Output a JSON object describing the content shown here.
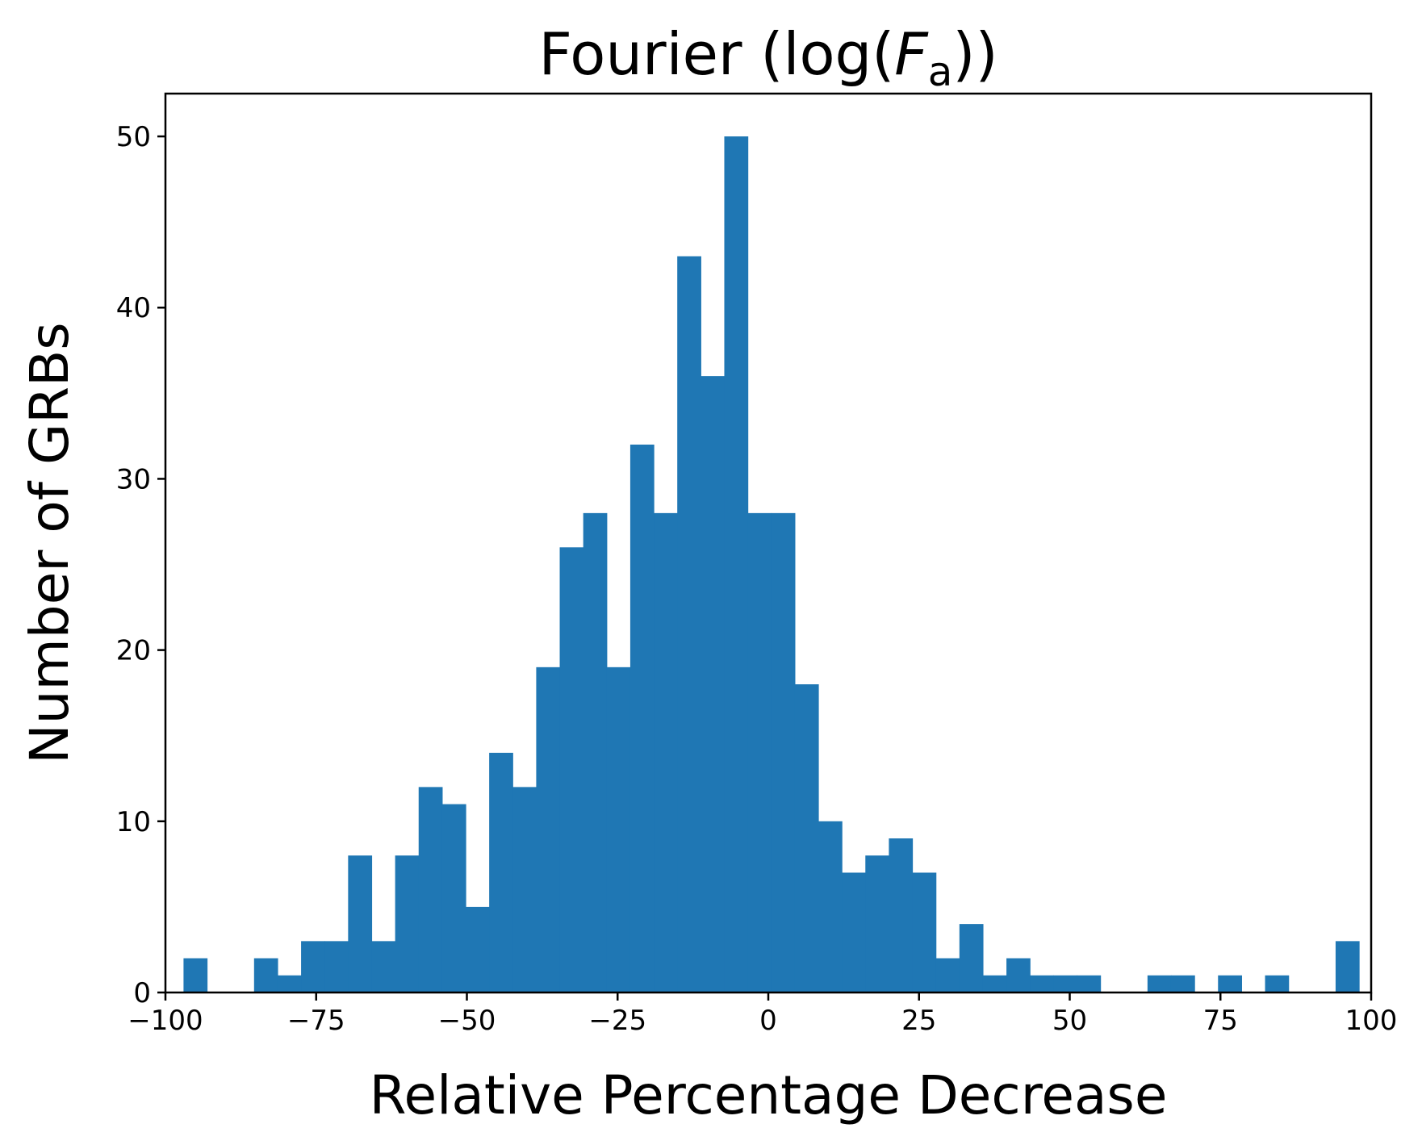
{
  "chart_data": {
    "type": "bar",
    "title": {
      "prefix": "Fourier (log(",
      "variable": "F",
      "subscript": "a",
      "suffix": "))"
    },
    "xlabel": "Relative Percentage Decrease",
    "ylabel": "Number of GRBs",
    "xlim": [
      -100,
      100
    ],
    "ylim": [
      0,
      52.5
    ],
    "xticks": [
      -100,
      -75,
      -50,
      -25,
      0,
      25,
      50,
      75,
      100
    ],
    "xtick_labels": [
      "−100",
      "−75",
      "−50",
      "−25",
      "0",
      "25",
      "50",
      "75",
      "100"
    ],
    "yticks": [
      0,
      10,
      20,
      30,
      40,
      50
    ],
    "ytick_labels": [
      "0",
      "10",
      "20",
      "30",
      "40",
      "50"
    ],
    "grid": false,
    "bar_color": "#1f77b4",
    "bin_edges": [
      -97.0,
      -93.1,
      -89.2,
      -85.3,
      -81.4,
      -77.5,
      -73.6,
      -69.7,
      -65.8,
      -61.9,
      -58.0,
      -54.1,
      -50.2,
      -46.3,
      -42.4,
      -38.5,
      -34.6,
      -30.7,
      -26.8,
      -22.9,
      -19.0,
      -15.1,
      -11.2,
      -7.3,
      -3.4,
      0.5,
      4.4,
      8.3,
      12.2,
      16.1,
      20.0,
      23.9,
      27.8,
      31.7,
      35.6,
      39.5,
      43.4,
      47.3,
      51.2,
      55.1,
      59.0,
      62.9,
      66.8,
      70.7,
      74.6,
      78.5,
      82.4,
      86.3,
      90.2,
      94.1,
      98.0
    ],
    "counts": [
      2,
      0,
      0,
      2,
      1,
      3,
      3,
      8,
      3,
      8,
      12,
      11,
      5,
      14,
      12,
      19,
      26,
      28,
      19,
      32,
      28,
      43,
      36,
      50,
      28,
      28,
      18,
      10,
      7,
      8,
      9,
      7,
      2,
      4,
      1,
      2,
      1,
      1,
      1,
      0,
      0,
      1,
      1,
      0,
      1,
      0,
      1,
      0,
      0,
      3
    ]
  }
}
